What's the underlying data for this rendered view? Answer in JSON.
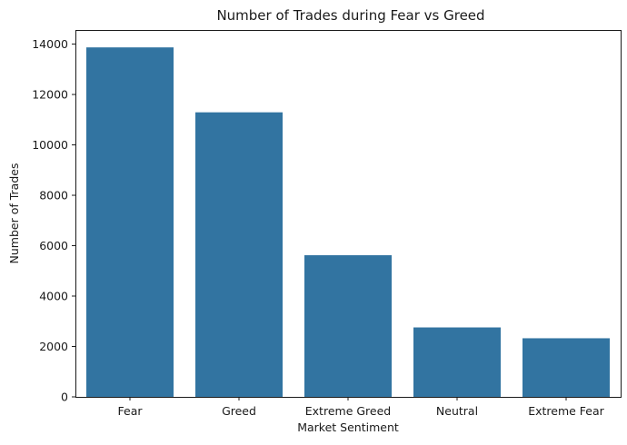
{
  "chart_data": {
    "type": "bar",
    "title": "Number of Trades during Fear vs Greed",
    "xlabel": "Market Sentiment",
    "ylabel": "Number of Trades",
    "categories": [
      "Fear",
      "Greed",
      "Extreme Greed",
      "Neutral",
      "Extreme Fear"
    ],
    "values": [
      13869,
      11292,
      5621,
      2756,
      2326
    ],
    "ylim": [
      0,
      14560
    ],
    "yticks": [
      0,
      2000,
      4000,
      6000,
      8000,
      10000,
      12000,
      14000
    ],
    "ytick_labels": [
      "0",
      "2000",
      "4000",
      "6000",
      "8000",
      "10000",
      "12000",
      "14000"
    ],
    "grid": false,
    "bar_color": "#3274a1"
  }
}
